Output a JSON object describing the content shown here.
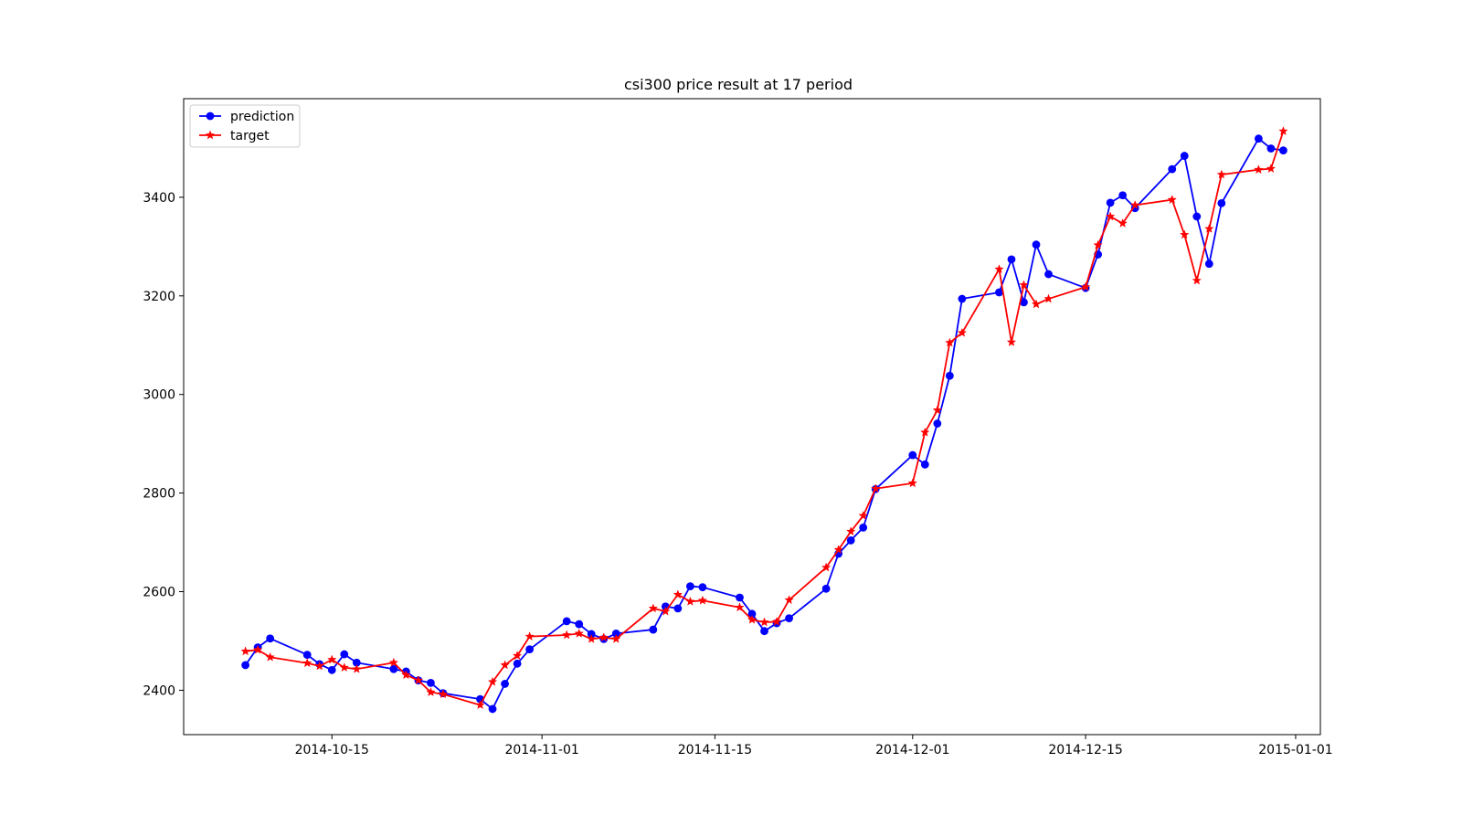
{
  "chart_data": {
    "type": "line",
    "title": "csi300 price result at 17 period",
    "xlabel": "",
    "ylabel": "",
    "xlim": [
      "2014-10-03",
      "2015-01-03"
    ],
    "ylim": [
      2310,
      3600
    ],
    "x_ticks": [
      "2014-10-15",
      "2014-11-01",
      "2014-11-15",
      "2014-12-01",
      "2014-12-15",
      "2015-01-01"
    ],
    "y_ticks": [
      2400,
      2600,
      2800,
      3000,
      3200,
      3400
    ],
    "grid": false,
    "legend_position": "upper-left",
    "series": [
      {
        "name": "prediction",
        "color": "#0000ff",
        "marker": "circle",
        "points": [
          [
            "2014-10-08",
            2451
          ],
          [
            "2014-10-09",
            2487
          ],
          [
            "2014-10-10",
            2505
          ],
          [
            "2014-10-13",
            2472
          ],
          [
            "2014-10-14",
            2453
          ],
          [
            "2014-10-15",
            2441
          ],
          [
            "2014-10-16",
            2473
          ],
          [
            "2014-10-17",
            2456
          ],
          [
            "2014-10-20",
            2443
          ],
          [
            "2014-10-21",
            2438
          ],
          [
            "2014-10-22",
            2420
          ],
          [
            "2014-10-23",
            2415
          ],
          [
            "2014-10-24",
            2394
          ],
          [
            "2014-10-27",
            2382
          ],
          [
            "2014-10-28",
            2362
          ],
          [
            "2014-10-29",
            2413
          ],
          [
            "2014-10-30",
            2454
          ],
          [
            "2014-10-31",
            2483
          ],
          [
            "2014-11-03",
            2540
          ],
          [
            "2014-11-04",
            2534
          ],
          [
            "2014-11-05",
            2514
          ],
          [
            "2014-11-06",
            2504
          ],
          [
            "2014-11-07",
            2515
          ],
          [
            "2014-11-10",
            2523
          ],
          [
            "2014-11-11",
            2570
          ],
          [
            "2014-11-12",
            2566
          ],
          [
            "2014-11-13",
            2611
          ],
          [
            "2014-11-14",
            2609
          ],
          [
            "2014-11-17",
            2588
          ],
          [
            "2014-11-18",
            2555
          ],
          [
            "2014-11-19",
            2520
          ],
          [
            "2014-11-20",
            2536
          ],
          [
            "2014-11-21",
            2546
          ],
          [
            "2014-11-24",
            2606
          ],
          [
            "2014-11-25",
            2677
          ],
          [
            "2014-11-26",
            2704
          ],
          [
            "2014-11-27",
            2730
          ],
          [
            "2014-11-28",
            2808
          ],
          [
            "2014-12-01",
            2877
          ],
          [
            "2014-12-02",
            2858
          ],
          [
            "2014-12-03",
            2941
          ],
          [
            "2014-12-04",
            3038
          ],
          [
            "2014-12-05",
            3194
          ],
          [
            "2014-12-08",
            3207
          ],
          [
            "2014-12-09",
            3274
          ],
          [
            "2014-12-10",
            3187
          ],
          [
            "2014-12-11",
            3304
          ],
          [
            "2014-12-12",
            3244
          ],
          [
            "2014-12-15",
            3216
          ],
          [
            "2014-12-16",
            3284
          ],
          [
            "2014-12-17",
            3389
          ],
          [
            "2014-12-18",
            3404
          ],
          [
            "2014-12-19",
            3378
          ],
          [
            "2014-12-22",
            3457
          ],
          [
            "2014-12-23",
            3484
          ],
          [
            "2014-12-24",
            3361
          ],
          [
            "2014-12-25",
            3265
          ],
          [
            "2014-12-26",
            3388
          ],
          [
            "2014-12-29",
            3519
          ],
          [
            "2014-12-30",
            3499
          ],
          [
            "2014-12-31",
            3495
          ]
        ]
      },
      {
        "name": "target",
        "color": "#ff0000",
        "marker": "star",
        "points": [
          [
            "2014-10-08",
            2479
          ],
          [
            "2014-10-09",
            2482
          ],
          [
            "2014-10-10",
            2467
          ],
          [
            "2014-10-13",
            2455
          ],
          [
            "2014-10-14",
            2449
          ],
          [
            "2014-10-15",
            2462
          ],
          [
            "2014-10-16",
            2446
          ],
          [
            "2014-10-17",
            2443
          ],
          [
            "2014-10-20",
            2456
          ],
          [
            "2014-10-21",
            2431
          ],
          [
            "2014-10-22",
            2420
          ],
          [
            "2014-10-23",
            2396
          ],
          [
            "2014-10-24",
            2392
          ],
          [
            "2014-10-27",
            2370
          ],
          [
            "2014-10-28",
            2417
          ],
          [
            "2014-10-29",
            2451
          ],
          [
            "2014-10-30",
            2470
          ],
          [
            "2014-10-31",
            2509
          ],
          [
            "2014-11-03",
            2512
          ],
          [
            "2014-11-04",
            2515
          ],
          [
            "2014-11-05",
            2504
          ],
          [
            "2014-11-06",
            2507
          ],
          [
            "2014-11-07",
            2504
          ],
          [
            "2014-11-10",
            2566
          ],
          [
            "2014-11-11",
            2560
          ],
          [
            "2014-11-12",
            2594
          ],
          [
            "2014-11-13",
            2580
          ],
          [
            "2014-11-14",
            2582
          ],
          [
            "2014-11-17",
            2568
          ],
          [
            "2014-11-18",
            2543
          ],
          [
            "2014-11-19",
            2538
          ],
          [
            "2014-11-20",
            2539
          ],
          [
            "2014-11-21",
            2583
          ],
          [
            "2014-11-24",
            2649
          ],
          [
            "2014-11-25",
            2685
          ],
          [
            "2014-11-26",
            2722
          ],
          [
            "2014-11-27",
            2754
          ],
          [
            "2014-11-28",
            2809
          ],
          [
            "2014-12-01",
            2820
          ],
          [
            "2014-12-02",
            2923
          ],
          [
            "2014-12-03",
            2968
          ],
          [
            "2014-12-04",
            3105
          ],
          [
            "2014-12-05",
            3125
          ],
          [
            "2014-12-08",
            3254
          ],
          [
            "2014-12-09",
            3106
          ],
          [
            "2014-12-10",
            3222
          ],
          [
            "2014-12-11",
            3183
          ],
          [
            "2014-12-12",
            3194
          ],
          [
            "2014-12-15",
            3218
          ],
          [
            "2014-12-16",
            3303
          ],
          [
            "2014-12-17",
            3361
          ],
          [
            "2014-12-18",
            3347
          ],
          [
            "2014-12-19",
            3384
          ],
          [
            "2014-12-22",
            3395
          ],
          [
            "2014-12-23",
            3324
          ],
          [
            "2014-12-24",
            3231
          ],
          [
            "2014-12-25",
            3336
          ],
          [
            "2014-12-26",
            3446
          ],
          [
            "2014-12-29",
            3456
          ],
          [
            "2014-12-30",
            3458
          ],
          [
            "2014-12-31",
            3534
          ]
        ]
      }
    ]
  }
}
